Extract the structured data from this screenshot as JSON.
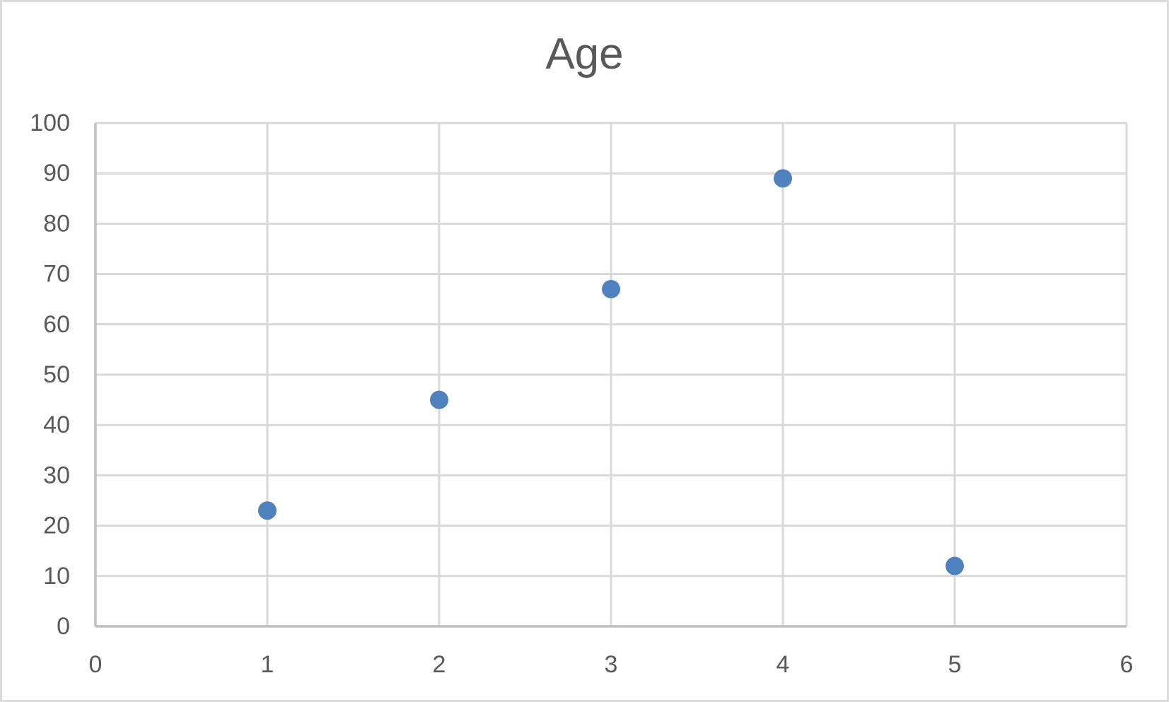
{
  "page": {
    "background_color": "#ffffff",
    "border_color": "#dcdcdc"
  },
  "chart": {
    "title_color": "#595959",
    "tick_label_color": "#595959",
    "gridline_color": "#d9d9d9",
    "axis_line_color": "#bfbfbf",
    "marker_color": "#4e81bd",
    "marker_radius": 13
  },
  "chart_data": {
    "type": "scatter",
    "title": "Age",
    "x": [
      1,
      2,
      3,
      4,
      5
    ],
    "y": [
      23,
      45,
      67,
      89,
      12
    ],
    "xlabel": "",
    "ylabel": "",
    "xlim": [
      0,
      6
    ],
    "ylim": [
      0,
      100
    ],
    "x_ticks": [
      0,
      1,
      2,
      3,
      4,
      5,
      6
    ],
    "y_ticks": [
      0,
      10,
      20,
      30,
      40,
      50,
      60,
      70,
      80,
      90,
      100
    ],
    "grid": true,
    "legend_position": "none"
  }
}
